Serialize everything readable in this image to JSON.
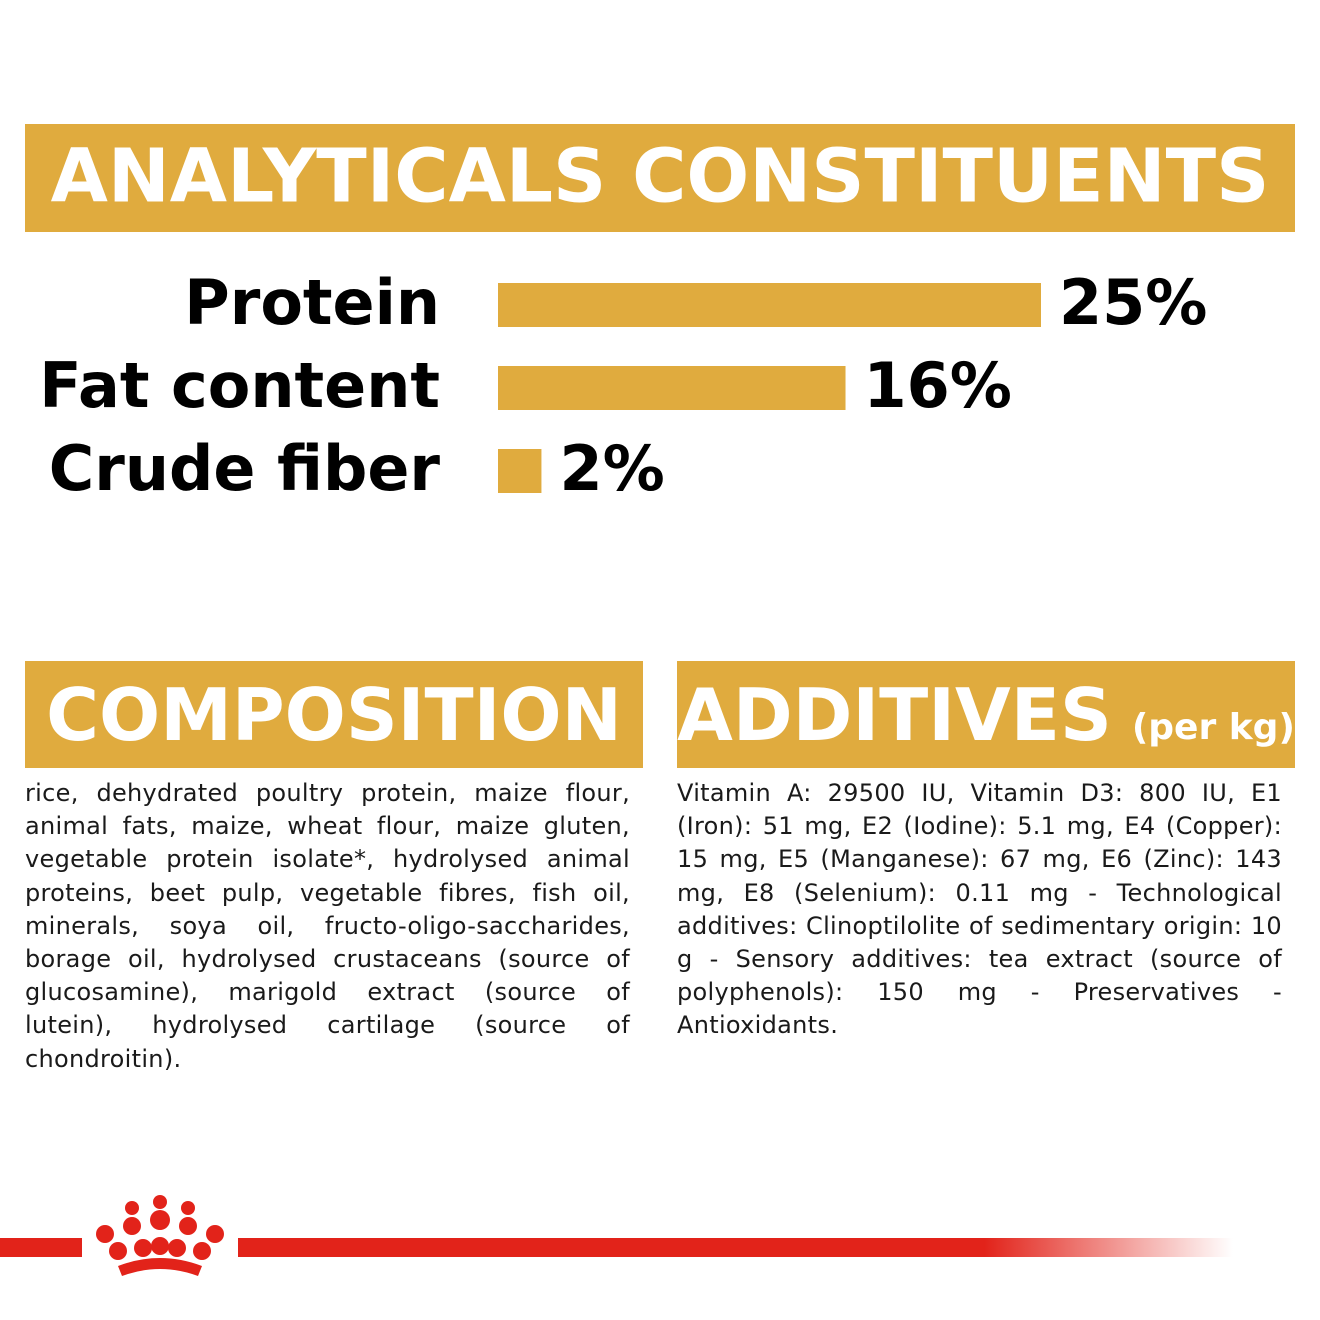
{
  "chart_data": {
    "type": "bar",
    "orientation": "horizontal",
    "title": "ANALYTICALS CONSTITUENTS",
    "categories": [
      "Protein",
      "Fat content",
      "Crude fiber"
    ],
    "values": [
      25,
      16,
      2
    ],
    "value_labels": [
      "25%",
      "16%",
      "2%"
    ],
    "color": "#e0ab3e"
  },
  "composition": {
    "title": "COMPOSITION",
    "text": "rice, dehydrated poultry protein, maize flour, animal fats, maize, wheat flour, maize gluten, vegetable protein isolate*, hydrolysed animal proteins, beet pulp, vegetable fibres, fish oil, minerals, soya oil, fructo-oligo-saccharides, borage oil, hydrolysed crustaceans (source of glucosamine), marigold extract (source of lutein), hydrolysed cartilage (source of chondroitin)."
  },
  "additives": {
    "title": "ADDITIVES",
    "unit": "(per kg)",
    "text": "Vitamin A: 29500 IU, Vitamin D3: 800 IU, E1 (Iron): 51 mg, E2 (Iodine): 5.1 mg, E4 (Copper): 15 mg, E5 (Manganese): 67 mg, E6 (Zinc): 143 mg, E8 (Selenium): 0.11 mg - Technological additives: Clinoptilolite of sedimentary origin: 10 g - Sensory additives: tea extract (source of polyphenols): 150 mg - Preservatives - Antioxidants."
  }
}
